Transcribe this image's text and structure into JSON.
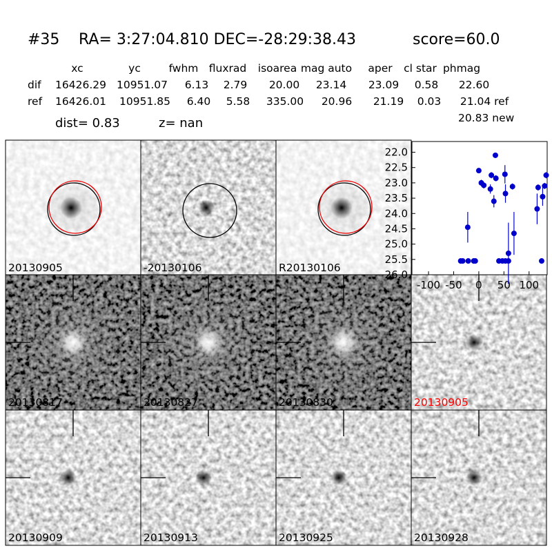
{
  "header": {
    "id": "#35",
    "coords": "RA= 3:27:04.810 DEC=-28:29:38.43",
    "score": "score=60.0"
  },
  "table": {
    "columns": [
      "xc",
      "yc",
      "fwhm",
      "fluxrad",
      "isoarea",
      "mag auto",
      "aper",
      "cl star",
      "phmag"
    ],
    "rows": [
      [
        "dif",
        "16426.29",
        "10951.07",
        "6.13",
        "2.79",
        "20.00",
        "23.14",
        "23.09",
        "0.58",
        "22.60"
      ],
      [
        "ref",
        "16426.01",
        "10951.85",
        "6.40",
        "5.58",
        "335.00",
        "20.96",
        "21.19",
        "0.03",
        "21.04 ref"
      ]
    ],
    "extra": "20.83 new"
  },
  "summary": {
    "dist": "dist=  0.83",
    "z": "z=   nan"
  },
  "stamps": [
    {
      "label": "20130905"
    },
    {
      "label": "-20130106"
    },
    {
      "label": "R20130106"
    },
    {
      "label": "20130817"
    },
    {
      "label": "20130827"
    },
    {
      "label": "20130830"
    },
    {
      "label": "20130905",
      "color": "#ff0000"
    },
    {
      "label": "20130909"
    },
    {
      "label": "20130913"
    },
    {
      "label": "20130925"
    },
    {
      "label": "20130928"
    }
  ],
  "chart_data": {
    "type": "scatter",
    "color": "#0000cc",
    "x": [
      -36,
      -32,
      -21,
      -10,
      -7,
      -22,
      0,
      5,
      10,
      23,
      25,
      30,
      33,
      34,
      40,
      47,
      52,
      53,
      53,
      59,
      59,
      67,
      70,
      116,
      118,
      125,
      127,
      131,
      134
    ],
    "values": [
      25.55,
      25.55,
      25.55,
      25.55,
      25.55,
      24.45,
      22.6,
      23.0,
      23.08,
      23.2,
      22.75,
      23.6,
      22.1,
      22.85,
      25.55,
      25.55,
      22.72,
      23.35,
      25.55,
      25.3,
      25.55,
      23.12,
      24.65,
      23.85,
      23.15,
      25.55,
      23.45,
      23.1,
      22.75
    ],
    "errors": [
      0.05,
      0.05,
      0.05,
      0.05,
      0.05,
      0.5,
      0.05,
      0.1,
      0.1,
      0.15,
      0.1,
      0.2,
      0.05,
      0.1,
      0.05,
      0.05,
      0.3,
      0.3,
      0.05,
      1.0,
      0.05,
      0.1,
      0.7,
      0.5,
      0.1,
      0.05,
      0.3,
      0.1,
      0.1
    ],
    "xlim": [
      -133,
      136
    ],
    "ylim": [
      26.0,
      21.65
    ],
    "xticks": [
      -100,
      -50,
      0,
      50,
      100
    ],
    "yticks": [
      {
        "value": 22,
        "label": "22.0"
      },
      22.5,
      {
        "value": 23,
        "label": "23.0"
      },
      23.5,
      {
        "value": 24,
        "label": "24.0"
      },
      24.5,
      {
        "value": 25,
        "label": "25.0"
      },
      25.5,
      {
        "value": 26,
        "label": "26.0"
      }
    ]
  }
}
